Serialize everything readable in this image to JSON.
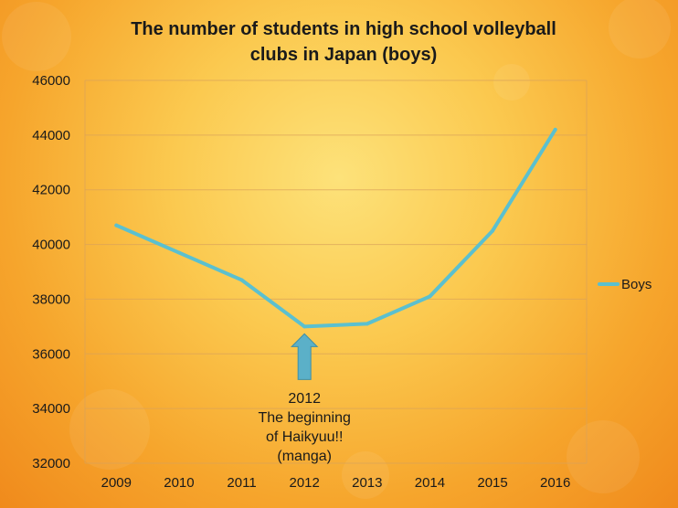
{
  "chart_data": {
    "type": "line",
    "title": "The number of students in high school volleyball clubs in Japan (boys)",
    "title_lines": [
      "The number of students in high school volleyball",
      "clubs in Japan (boys)"
    ],
    "xlabel": "",
    "ylabel": "",
    "categories": [
      "2009",
      "2010",
      "2011",
      "2012",
      "2013",
      "2014",
      "2015",
      "2016"
    ],
    "series": [
      {
        "name": "Boys",
        "color": "#5bc0cf",
        "values": [
          40700,
          39700,
          38700,
          37000,
          37100,
          38100,
          40500,
          44200
        ]
      }
    ],
    "ylim": [
      32000,
      46000
    ],
    "yticks": [
      "32000",
      "34000",
      "36000",
      "38000",
      "40000",
      "42000",
      "44000",
      "46000"
    ],
    "grid": true,
    "legend_position": "right",
    "annotation": {
      "target_category": "2012",
      "lines": [
        "2012",
        "The beginning",
        "of Haikyuu!!",
        "(manga)"
      ],
      "arrow_color": "#5bb0c8"
    }
  }
}
